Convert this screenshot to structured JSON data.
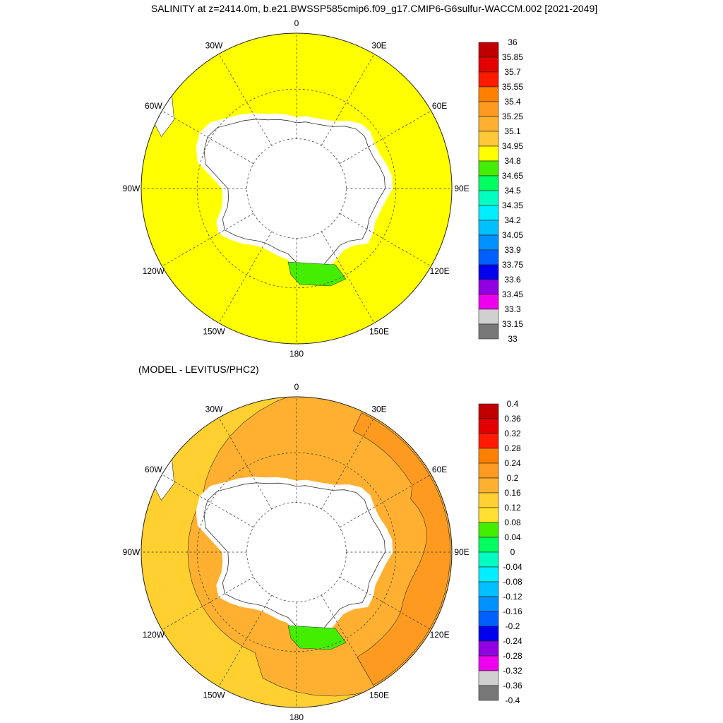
{
  "title": "SALINITY at z=2414.0m, b.e21.BWSSP585cmip6.f09_g17.CMIP6-G6sulfur-WACCM.002 [2021-2049]",
  "panels": [
    {
      "id": "top",
      "subtitle": "",
      "lon_labels": [
        "0",
        "30E",
        "60E",
        "90E",
        "120E",
        "150E",
        "180",
        "150W",
        "120W",
        "90W",
        "60W",
        "30W"
      ],
      "colorbar_labels": [
        "36",
        "35.85",
        "35.7",
        "35.55",
        "35.4",
        "35.25",
        "35.1",
        "34.95",
        "34.8",
        "34.65",
        "34.5",
        "34.35",
        "34.2",
        "34.05",
        "33.9",
        "33.75",
        "33.6",
        "33.45",
        "33.3",
        "33.15",
        "33"
      ],
      "colorbar_colors": [
        "#c00000",
        "#e20000",
        "#ff1a00",
        "#ff8000",
        "#ff9a20",
        "#ffb030",
        "#ffc838",
        "#ffff00",
        "#44ee00",
        "#00ff60",
        "#00ffc0",
        "#00eeff",
        "#00c0ff",
        "#0090ff",
        "#0060ff",
        "#0000ee",
        "#9000e0",
        "#ee00ee",
        "#d0d0d0",
        "#787878"
      ]
    },
    {
      "id": "bottom",
      "subtitle": "(MODEL - LEVITUS/PHC2)",
      "lon_labels": [
        "0",
        "30E",
        "60E",
        "90E",
        "120E",
        "150E",
        "180",
        "150W",
        "120W",
        "90W",
        "60W",
        "30W"
      ],
      "colorbar_labels": [
        "0.4",
        "0.36",
        "0.32",
        "0.28",
        "0.24",
        "0.2",
        "0.16",
        "0.12",
        "0.08",
        "0.04",
        "0",
        "-0.04",
        "-0.08",
        "-0.12",
        "-0.16",
        "-0.2",
        "-0.24",
        "-0.28",
        "-0.32",
        "-0.36",
        "-0.4"
      ],
      "colorbar_colors": [
        "#c00000",
        "#e20000",
        "#ff1a00",
        "#ff8000",
        "#ff9a20",
        "#ffb030",
        "#ffd030",
        "#ffe030",
        "#44ee00",
        "#00ff60",
        "#00ffc0",
        "#00eeff",
        "#00c0ff",
        "#0090ff",
        "#0060ff",
        "#0000ee",
        "#9000e0",
        "#ee00ee",
        "#d0d0d0",
        "#787878"
      ]
    }
  ],
  "map_colors": {
    "top_ocean": "#ffff00",
    "top_anomaly": "#44ee00",
    "bottom_warm": "#ffb030",
    "bottom_hot": "#ff9a20",
    "bottom_mild": "#ffd030",
    "bottom_anomaly": "#44ee00",
    "land": "#ffffff"
  }
}
